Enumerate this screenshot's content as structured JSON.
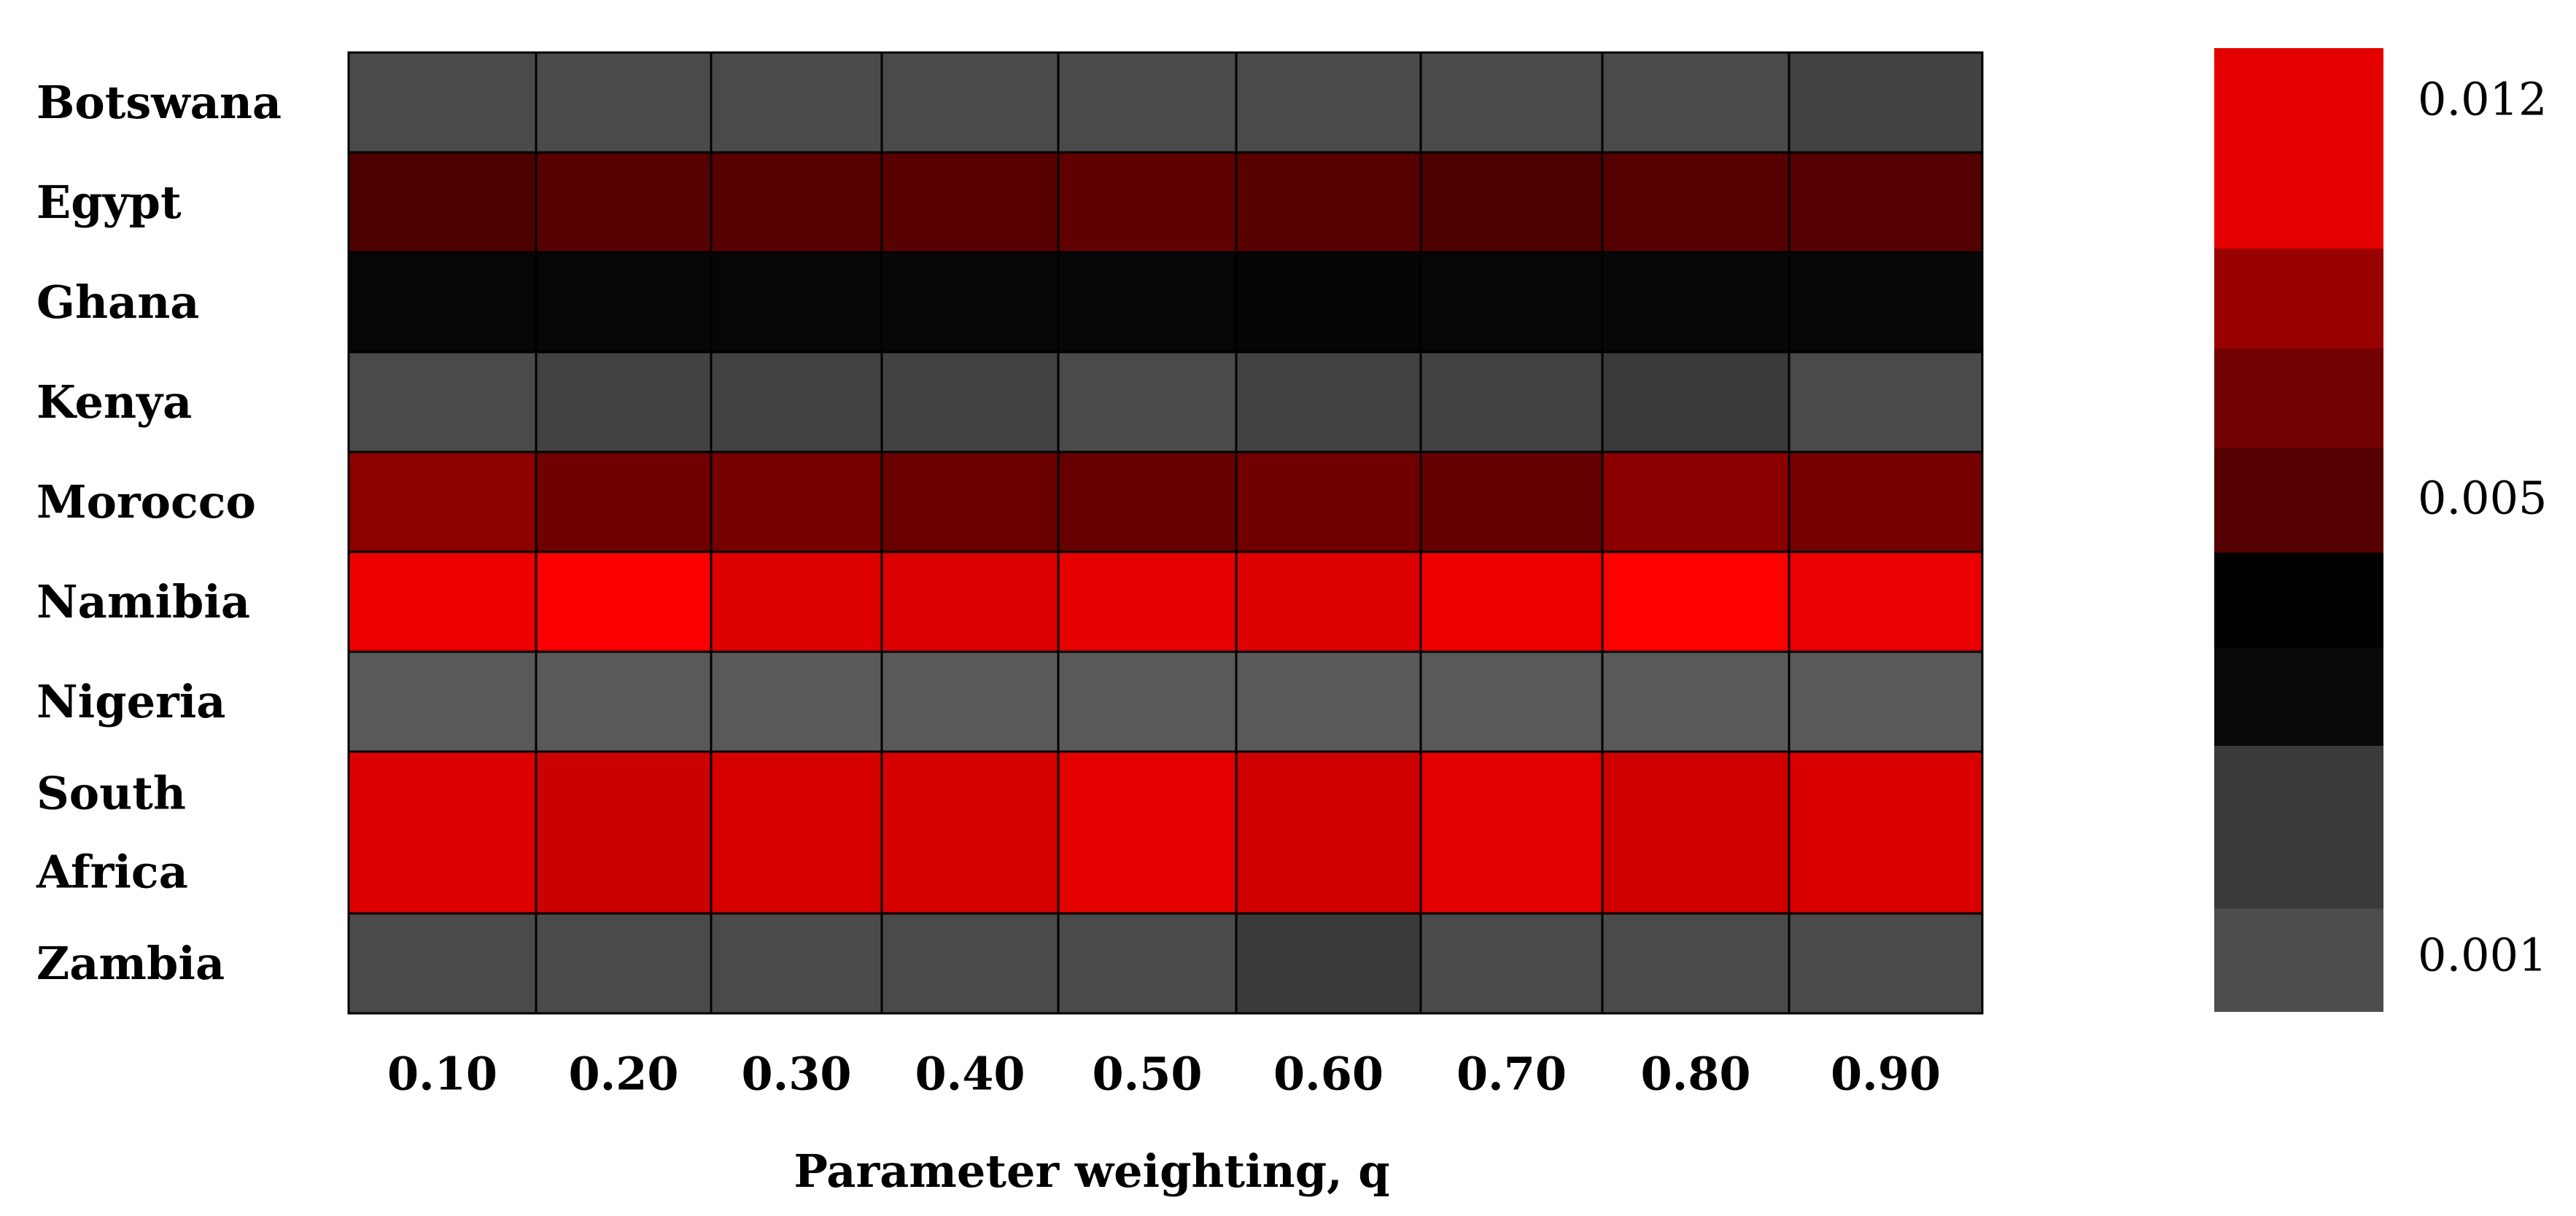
{
  "chart_data": {
    "type": "heatmap",
    "title": "",
    "xlabel": "Parameter weighting, q",
    "ylabel": "",
    "x": [
      "0.10",
      "0.20",
      "0.30",
      "0.40",
      "0.50",
      "0.60",
      "0.70",
      "0.80",
      "0.90"
    ],
    "y": [
      "Botswana",
      "Egypt",
      "Ghana",
      "Kenya",
      "Morocco",
      "Namibia",
      "Nigeria",
      "South Africa",
      "Zambia"
    ],
    "values": [
      [
        0.0012,
        0.0012,
        0.0012,
        0.0012,
        0.0012,
        0.0012,
        0.0012,
        0.0012,
        0.0013
      ],
      [
        0.0049,
        0.0051,
        0.0051,
        0.0052,
        0.0056,
        0.0051,
        0.0049,
        0.0051,
        0.005
      ],
      [
        0.0033,
        0.0031,
        0.0032,
        0.0031,
        0.0033,
        0.0034,
        0.0031,
        0.0031,
        0.0031
      ],
      [
        0.0012,
        0.0013,
        0.0013,
        0.0013,
        0.0012,
        0.0013,
        0.0013,
        0.0014,
        0.0012
      ],
      [
        0.0075,
        0.0064,
        0.0066,
        0.0061,
        0.0059,
        0.0064,
        0.0058,
        0.0074,
        0.0066
      ],
      [
        0.012,
        0.0125,
        0.0115,
        0.0114,
        0.0118,
        0.0115,
        0.0121,
        0.0127,
        0.0119
      ],
      [
        0.001,
        0.001,
        0.001,
        0.001,
        0.001,
        0.001,
        0.001,
        0.001,
        0.001
      ],
      [
        0.0114,
        0.0106,
        0.0112,
        0.0111,
        0.0117,
        0.0108,
        0.0116,
        0.0108,
        0.0113
      ],
      [
        0.0012,
        0.0012,
        0.0012,
        0.0012,
        0.0012,
        0.0014,
        0.0012,
        0.0012,
        0.0012
      ]
    ],
    "colorbar": {
      "ticks": [
        {
          "value": 0.012,
          "label": "0.012"
        },
        {
          "value": 0.005,
          "label": "0.005"
        },
        {
          "value": 0.001,
          "label": "0.001"
        }
      ]
    },
    "colorscale": [
      {
        "value": 0.001,
        "color": "#595959"
      },
      {
        "value": 0.0014,
        "color": "#3a3a3a"
      },
      {
        "value": 0.003,
        "color": "#080808"
      },
      {
        "value": 0.004,
        "color": "#000000"
      },
      {
        "value": 0.005,
        "color": "#550000"
      },
      {
        "value": 0.0065,
        "color": "#720000"
      },
      {
        "value": 0.008,
        "color": "#9a0000"
      },
      {
        "value": 0.011,
        "color": "#d20000"
      },
      {
        "value": 0.0127,
        "color": "#ff0000"
      }
    ],
    "colorbar_bands": [
      {
        "value": 0.012,
        "color": "#e40000"
      },
      {
        "value": 0.008,
        "color": "#990000"
      },
      {
        "value": 0.0065,
        "color": "#730000"
      },
      {
        "value": 0.005,
        "color": "#540000"
      },
      {
        "value": 0.004,
        "color": "#000000"
      },
      {
        "value": 0.003,
        "color": "#080808"
      },
      {
        "value": 0.0014,
        "color": "#3a3a3a"
      },
      {
        "value": 0.001,
        "color": "#4d4d4d"
      }
    ]
  }
}
